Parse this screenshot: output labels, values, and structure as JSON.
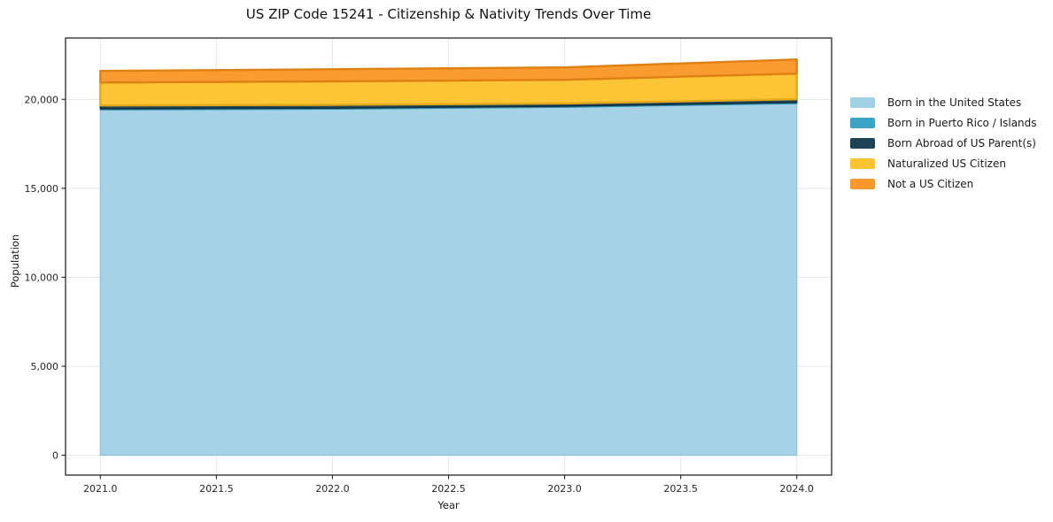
{
  "chart_data": {
    "type": "area",
    "stacked": true,
    "title": "US ZIP Code 15241 - Citizenship & Nativity Trends Over Time",
    "xlabel": "Year",
    "ylabel": "Population",
    "x": [
      2021,
      2022,
      2023,
      2024
    ],
    "series": [
      {
        "name": "Born in the United States",
        "values": [
          19410,
          19445,
          19555,
          19760
        ],
        "color": "#a2d1e6",
        "edge": "#8cc3db"
      },
      {
        "name": "Born in Puerto Rico / Islands",
        "values": [
          65,
          65,
          65,
          70
        ],
        "color": "#3ba3c4",
        "edge": "#2e8cab"
      },
      {
        "name": "Born Abroad of US Parent(s)",
        "values": [
          180,
          180,
          150,
          175
        ],
        "color": "#1e4356",
        "edge": "#142e3c"
      },
      {
        "name": "Naturalized US Citizen",
        "values": [
          1290,
          1320,
          1330,
          1440
        ],
        "color": "#fcc330",
        "edge": "#e3a918"
      },
      {
        "name": "Not a US Citizen",
        "values": [
          650,
          680,
          695,
          795
        ],
        "color": "#f8992b",
        "edge": "#e07f12"
      }
    ],
    "xlim": [
      2020.85,
      2024.15
    ],
    "ylim": [
      -1118,
      23444
    ],
    "xticks": {
      "values": [
        2021.0,
        2021.5,
        2022.0,
        2022.5,
        2023.0,
        2023.5,
        2024.0
      ],
      "labels": [
        "2021.0",
        "2021.5",
        "2022.0",
        "2022.5",
        "2023.0",
        "2023.5",
        "2024.0"
      ]
    },
    "yticks": {
      "values": [
        0,
        5000,
        10000,
        15000,
        20000
      ],
      "labels": [
        "0",
        "5,000",
        "10,000",
        "15,000",
        "20,000"
      ]
    },
    "grid": true,
    "grid_color": "#e8e8e8",
    "spine_color": "#262626",
    "background_color": "#ffffff",
    "legend_position": "right-outside"
  }
}
